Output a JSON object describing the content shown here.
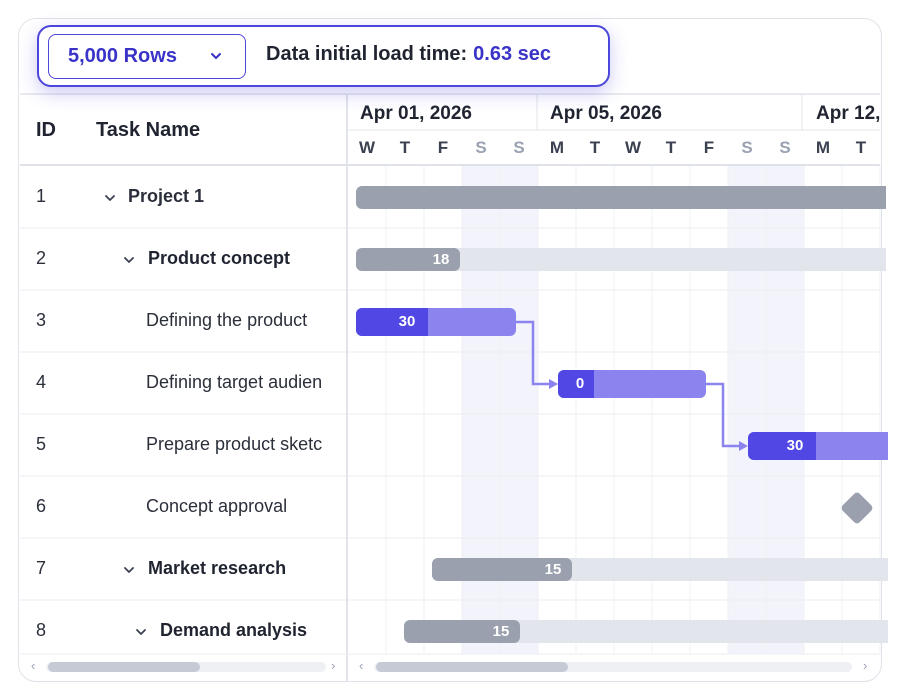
{
  "toolbar": {
    "rows_value": "5,000 Rows",
    "load_label": "Data initial load time:",
    "load_value": "0.63 sec"
  },
  "grid": {
    "col_id": "ID",
    "col_name": "Task Name"
  },
  "timeline": {
    "weeks": [
      "Apr 01, 2026",
      "Apr 05, 2026",
      "Apr 12,"
    ],
    "days": [
      "W",
      "T",
      "F",
      "S",
      "S",
      "M",
      "T",
      "W",
      "T",
      "F",
      "S",
      "S",
      "M",
      "T"
    ],
    "weekend_indices": [
      3,
      4,
      10,
      11
    ]
  },
  "tasks": [
    {
      "id": "1",
      "name": "Project 1",
      "level": 0,
      "group": true,
      "bold": false
    },
    {
      "id": "2",
      "name": "Product concept",
      "level": 1,
      "group": true,
      "bold": true
    },
    {
      "id": "3",
      "name": "Defining the product",
      "level": 2,
      "group": false,
      "bold": false
    },
    {
      "id": "4",
      "name": "Defining target audien",
      "level": 2,
      "group": false,
      "bold": false
    },
    {
      "id": "5",
      "name": "Prepare product sketc",
      "level": 2,
      "group": false,
      "bold": false
    },
    {
      "id": "6",
      "name": "Concept approval",
      "level": 2,
      "group": false,
      "bold": false
    },
    {
      "id": "7",
      "name": "Market research",
      "level": 1,
      "group": true,
      "bold": true
    },
    {
      "id": "8",
      "name": "Demand analysis",
      "level": 1,
      "group": true,
      "bold": true
    }
  ],
  "bars": {
    "b2": "18",
    "b3": "30",
    "b4": "0",
    "b5": "30",
    "b7": "15",
    "b8": "15"
  },
  "colors": {
    "accent": "#4b46dc",
    "task_done": "#5047e5",
    "task_rest": "#8b84ee",
    "summary_done": "#9aa0ad",
    "summary_rest": "#e3e5ec",
    "milestone": "#9aa0ad",
    "weekend": "#f3f4fb"
  }
}
